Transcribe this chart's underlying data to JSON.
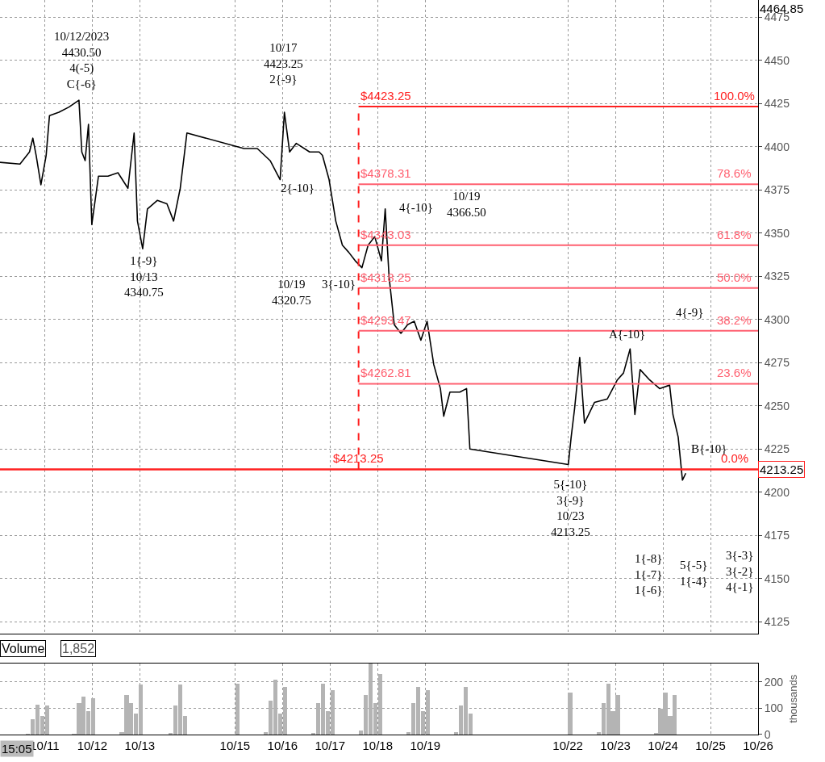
{
  "chart_data": [
    {
      "type": "line",
      "grid": true,
      "tick_labels": "y",
      "marker": "none",
      "line_style": "solid",
      "xlim": [
        "2023-10-10T01:26",
        "2023-10-26"
      ],
      "ylim": [
        4118,
        4485
      ],
      "xticks": [
        {
          "value": "2023-10-11",
          "label": null
        },
        {
          "value": "2023-10-12",
          "label": null
        },
        {
          "value": "2023-10-13",
          "label": null
        },
        {
          "value": "2023-10-15",
          "label": null
        },
        {
          "value": "2023-10-16",
          "label": null
        },
        {
          "value": "2023-10-17",
          "label": null
        },
        {
          "value": "2023-10-18",
          "label": null
        },
        {
          "value": "2023-10-19",
          "label": null
        },
        {
          "value": "2023-10-22",
          "label": null
        },
        {
          "value": "2023-10-23",
          "label": null
        },
        {
          "value": "2023-10-24",
          "label": null
        },
        {
          "value": "2023-10-25",
          "label": null
        },
        {
          "value": "2023-10-26",
          "label": null
        }
      ],
      "yticks": [
        4125,
        4150,
        4175,
        4200,
        4225,
        4250,
        4275,
        4300,
        4325,
        4350,
        4375,
        4400,
        4425,
        4450,
        4475
      ],
      "series": [
        {
          "color": "#000000",
          "x": [
            "2023-10-10T01:26",
            "2023-10-10T11:31",
            "2023-10-10T16:19",
            "2023-10-10T18:00",
            "2023-10-10T19:41",
            "2023-10-10T22:05",
            "2023-10-11T00:43",
            "2023-10-11T02:24",
            "2023-10-11T07:12",
            "2023-10-11T12:14",
            "2023-10-11T17:17",
            "2023-10-11T18:43",
            "2023-10-11T20:24",
            "2023-10-11T22:05",
            "2023-10-11T23:46",
            "2023-10-12T03:07",
            "2023-10-12T07:55",
            "2023-10-12T12:58",
            "2023-10-12T18:00",
            "2023-10-12T21:07",
            "2023-10-12T22:48",
            "2023-10-13T01:26",
            "2023-10-13T03:50",
            "2023-10-13T08:53",
            "2023-10-13T13:41",
            "2023-10-13T17:02",
            "2023-10-13T20:24",
            "2023-10-13T23:46",
            "2023-10-15T04:34",
            "2023-10-15T11:17",
            "2023-10-15T17:46",
            "2023-10-15T22:48",
            "2023-10-16T00:58",
            "2023-10-16T03:36",
            "2023-10-16T06:58",
            "2023-10-16T13:41",
            "2023-10-16T18:29",
            "2023-10-16T20:10",
            "2023-10-16T23:31",
            "2023-10-17T02:53",
            "2023-10-17T06:14",
            "2023-10-17T09:22",
            "2023-10-17T12:43",
            "2023-10-17T16:05",
            "2023-10-17T19:12",
            "2023-10-17T22:34",
            "2023-10-18T01:55",
            "2023-10-18T03:50",
            "2023-10-18T05:46",
            "2023-10-18T08:24",
            "2023-10-18T11:46",
            "2023-10-18T15:07",
            "2023-10-18T18:29",
            "2023-10-18T21:50",
            "2023-10-19T00:58",
            "2023-10-19T04:19",
            "2023-10-19T07:41",
            "2023-10-19T09:22",
            "2023-10-19T12:29",
            "2023-10-19T17:31",
            "2023-10-19T20:53",
            "2023-10-19T22:34",
            "2023-10-22T00:14",
            "2023-10-22T01:41",
            "2023-10-22T03:22",
            "2023-10-22T06:00",
            "2023-10-22T08:24",
            "2023-10-22T13:26",
            "2023-10-22T19:55",
            "2023-10-23T00:58",
            "2023-10-23T04:05",
            "2023-10-23T07:26",
            "2023-10-23T09:50",
            "2023-10-23T12:29",
            "2023-10-23T17:17",
            "2023-10-23T22:19",
            "2023-10-24T03:22",
            "2023-10-24T05:02",
            "2023-10-24T07:41",
            "2023-10-24T09:50",
            "2023-10-24T11:31"
          ],
          "values": [
            4391,
            4390,
            4397,
            4405,
            4395,
            4378,
            4395,
            4418,
            4420,
            4423,
            4427,
            4397,
            4392,
            4413,
            4355,
            4383,
            4383,
            4385,
            4376,
            4408,
            4357,
            4341,
            4364,
            4369,
            4367,
            4357,
            4376,
            4408,
            4399,
            4399,
            4392,
            4381,
            4420,
            4397,
            4402,
            4397,
            4397,
            4395,
            4381,
            4357,
            4343,
            4339,
            4334,
            4330,
            4343,
            4348,
            4334,
            4364,
            4325,
            4297,
            4292,
            4297,
            4299,
            4288,
            4299,
            4274,
            4260,
            4244,
            4258,
            4258,
            4260,
            4225,
            4216,
            4232,
            4248,
            4278,
            4240,
            4252,
            4254,
            4265,
            4269,
            4283,
            4245,
            4271,
            4265,
            4260,
            4262,
            4245,
            4232,
            4207,
            4211
          ]
        },
        {
          "color": "#ff2020",
          "x": [
            "2023-10-17T14:24",
            "2023-10-26"
          ],
          "values": [
            4423.25,
            4423.25
          ]
        },
        {
          "color": "#ff6070",
          "x": [
            "2023-10-17T14:24",
            "2023-10-26"
          ],
          "values": [
            4378.31,
            4378.31
          ]
        },
        {
          "color": "#ff6070",
          "x": [
            "2023-10-17T14:24",
            "2023-10-26"
          ],
          "values": [
            4343.03,
            4343.03
          ]
        },
        {
          "color": "#ff6070",
          "x": [
            "2023-10-17T14:24",
            "2023-10-26"
          ],
          "values": [
            4318.25,
            4318.25
          ]
        },
        {
          "color": "#ff6070",
          "x": [
            "2023-10-17T14:24",
            "2023-10-26"
          ],
          "values": [
            4293.47,
            4293.47
          ]
        },
        {
          "color": "#ff6070",
          "x": [
            "2023-10-17T14:24",
            "2023-10-26"
          ],
          "values": [
            4262.81,
            4262.81
          ]
        },
        {
          "color": "#ff2020",
          "x": [
            "2023-10-17T14:24",
            "2023-10-17T14:24"
          ],
          "values": [
            4213.25,
            4423.25
          ],
          "line_style": "dashed"
        }
      ],
      "ref_lines": [
        {
          "axis": "y",
          "value": 4213.25,
          "label": "4213.25",
          "color": "#ff2020"
        }
      ],
      "annotations": [
        "4464.85",
        "10/12/2023\n4430.50\n4(-5)\nC{-6}",
        "10/17\n4423.25\n2{-9}",
        "2{-10}",
        "1{-9}\n10/13\n4340.75",
        "10/19\n4320.75",
        "3{-10}",
        "4{-10}",
        "10/19\n4366.50",
        "4{-9}",
        "A{-10}",
        "B{-10}",
        "5{-10}\n3{-9}\n10/23\n4213.25",
        "1{-8}\n1{-7}\n1{-6}",
        "5{-5}\n1{-4}",
        "3{-3}\n3{-2}\n4{-1}",
        {
          "text": "$4423.25",
          "x": "2023-10-17T14:24",
          "y": 4423.25
        },
        {
          "text": "100.0%",
          "x": "2023-10-25T12:00",
          "y": 4423.25
        },
        {
          "text": "$4378.31",
          "x": "2023-10-17T14:24",
          "y": 4378.31
        },
        {
          "text": "78.6%",
          "x": "2023-10-25T12:00",
          "y": 4378.31
        },
        {
          "text": "$4343.03",
          "x": "2023-10-17T14:24",
          "y": 4343.03
        },
        {
          "text": "61.8%",
          "x": "2023-10-25T12:00",
          "y": 4343.03
        },
        {
          "text": "$4318.25",
          "x": "2023-10-17T14:24",
          "y": 4318.25
        },
        {
          "text": "50.0%",
          "x": "2023-10-25T12:00",
          "y": 4318.25
        },
        {
          "text": "$4293.47",
          "x": "2023-10-17T14:24",
          "y": 4293.47
        },
        {
          "text": "38.2%",
          "x": "2023-10-25T12:00",
          "y": 4293.47
        },
        {
          "text": "$4262.81",
          "x": "2023-10-17T14:24",
          "y": 4262.81
        },
        {
          "text": "23.6%",
          "x": "2023-10-25T12:00",
          "y": 4262.81
        },
        {
          "text": "$4213.25",
          "x": "2023-10-17T14:24",
          "y": 4213.25
        },
        {
          "text": "0.0%",
          "x": "2023-10-25T12:00",
          "y": 4213.25
        }
      ]
    },
    {
      "type": "bar",
      "title": "Volume",
      "subtitle": "1,852",
      "ylabel": "thousands",
      "grid": true,
      "color": "#b4b4b4",
      "xlim": [
        "2023-10-10T01:26",
        "2023-10-26"
      ],
      "ylim": [
        0,
        270
      ],
      "yticks": [
        0,
        100,
        200
      ],
      "xticks": [
        {
          "value": "2023-10-11",
          "label": "10/11"
        },
        {
          "value": "2023-10-12",
          "label": "10/12"
        },
        {
          "value": "2023-10-13",
          "label": "10/13"
        },
        {
          "value": "2023-10-15",
          "label": "10/15"
        },
        {
          "value": "2023-10-16",
          "label": "10/16"
        },
        {
          "value": "2023-10-17",
          "label": "10/17"
        },
        {
          "value": "2023-10-18",
          "label": "10/18"
        },
        {
          "value": "2023-10-19",
          "label": "10/19"
        },
        {
          "value": "2023-10-22",
          "label": "10/22"
        },
        {
          "value": "2023-10-23",
          "label": "10/23"
        },
        {
          "value": "2023-10-24",
          "label": "10/24"
        },
        {
          "value": "2023-10-25",
          "label": "10/25"
        },
        {
          "value": "2023-10-26",
          "label": "10/26"
        }
      ],
      "x": [
        "2023-10-10T15:36",
        "2023-10-10T18:00",
        "2023-10-10T20:24",
        "2023-10-10T22:48",
        "2023-10-11T01:12",
        "2023-10-11T14:53",
        "2023-10-11T17:17",
        "2023-10-11T19:41",
        "2023-10-11T22:05",
        "2023-10-12T00:29",
        "2023-10-12T14:53",
        "2023-10-12T17:17",
        "2023-10-12T19:41",
        "2023-10-12T22:05",
        "2023-10-13T00:29",
        "2023-10-13T15:36",
        "2023-10-13T18:00",
        "2023-10-13T20:24",
        "2023-10-13T22:48",
        "2023-10-15T01:12",
        "2023-10-15T15:36",
        "2023-10-15T18:00",
        "2023-10-15T20:24",
        "2023-10-15T22:48",
        "2023-10-16T01:12",
        "2023-10-16T15:36",
        "2023-10-16T18:00",
        "2023-10-16T20:24",
        "2023-10-16T22:48",
        "2023-10-17T01:12",
        "2023-10-17T15:36",
        "2023-10-17T18:00",
        "2023-10-17T20:24",
        "2023-10-17T22:48",
        "2023-10-18T01:12",
        "2023-10-18T15:36",
        "2023-10-18T18:00",
        "2023-10-18T20:24",
        "2023-10-18T22:48",
        "2023-10-19T01:12",
        "2023-10-19T15:36",
        "2023-10-19T18:00",
        "2023-10-19T20:24",
        "2023-10-19T22:48",
        "2023-10-22T01:12",
        "2023-10-22T15:36",
        "2023-10-22T18:00",
        "2023-10-22T20:24",
        "2023-10-22T22:48",
        "2023-10-23T01:12",
        "2023-10-23T20:24",
        "2023-10-23T22:48",
        "2023-10-24T01:12",
        "2023-10-24T03:36",
        "2023-10-24T06:00"
      ],
      "values": [
        5,
        60,
        115,
        70,
        110,
        5,
        120,
        145,
        90,
        140,
        10,
        150,
        120,
        80,
        190,
        8,
        110,
        190,
        70,
        195,
        10,
        130,
        210,
        80,
        180,
        8,
        120,
        195,
        90,
        170,
        15,
        150,
        270,
        120,
        230,
        10,
        120,
        180,
        90,
        170,
        10,
        110,
        180,
        80,
        160,
        10,
        120,
        195,
        90,
        150,
        8,
        100,
        160,
        70,
        150
      ],
      "annotations": [
        "15:05"
      ]
    }
  ]
}
